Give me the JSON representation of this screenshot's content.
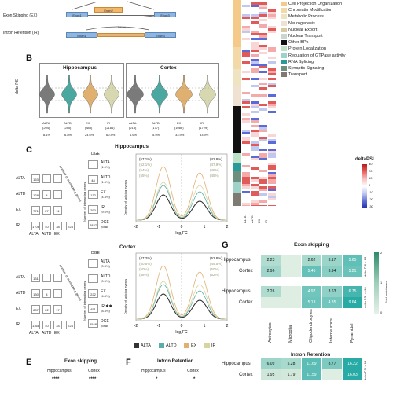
{
  "panel_a": {
    "exon_skipping_label": "Exon Skipping (EX)",
    "intron_retention_label": "Intron Retention (IR)",
    "exon1": "Exon1",
    "exon2": "Exon2",
    "exon3": "Exon3",
    "intron": "Intron"
  },
  "panel_b": {
    "letter": "B",
    "ylabel": "delta PSI",
    "left_title": "Hippocampus",
    "right_title": "Cortex",
    "left_cats": [
      "ALTA",
      "ALTD",
      "EX",
      "IR"
    ],
    "left_counts": [
      "(294)",
      "(245)",
      "(888)",
      "(2181)"
    ],
    "left_pcts": [
      "8.1%",
      "6.8%",
      "24.6%",
      "60.4%"
    ],
    "right_cats": [
      "ALTA",
      "ALTD",
      "EX",
      "IR"
    ],
    "right_counts": [
      "(213)",
      "(177)",
      "(1086)",
      "(1729)"
    ],
    "right_pcts": [
      "6.6%",
      "5.5%",
      "33.9%",
      "53.9%"
    ],
    "colors": [
      "#7a7a7a",
      "#4aa8a0",
      "#e0b070",
      "#d8d8b0"
    ]
  },
  "panel_c": {
    "letter": "C",
    "hippocampus_title": "Hippocampus",
    "cortex_title": "Cortex",
    "matrix_rows": [
      "ALTA",
      "ALTD",
      "EX",
      "IR"
    ],
    "matrix_cols": [
      "ALTA",
      "ALTD",
      "EX"
    ],
    "matrix_axis_label": "Number of overlapping genes",
    "dge_label": "DGE",
    "dge_axis_label": "Number of interacting genes",
    "hip_matrix": [
      [
        "153",
        "",
        ""
      ],
      [
        "128",
        "4",
        ""
      ],
      [
        "771",
        "27",
        "11"
      ],
      [
        "1706",
        "40",
        "38",
        "224"
      ]
    ],
    "hip_dge": [
      {
        "name": "ALTA",
        "count": "",
        "pct": "(1.0%)"
      },
      {
        "name": "ALTD",
        "count": "48",
        "pct": "(1.6%)"
      },
      {
        "name": "EX",
        "count": "132",
        "pct": "(4.3%)"
      },
      {
        "name": "IR",
        "count": "290",
        "pct": "(9.6%)"
      },
      {
        "name": "DGE",
        "count": "4827",
        "pct": "(total)"
      }
    ],
    "cortex_matrix": [
      [
        "131",
        "",
        ""
      ],
      [
        "130",
        "4",
        ""
      ],
      [
        "837",
        "22",
        "17"
      ],
      [
        "1368",
        "40",
        "34",
        "224"
      ]
    ],
    "cortex_dge": [
      {
        "name": "ALTA",
        "count": "",
        "pct": "(0.3%)"
      },
      {
        "name": "ALTD",
        "count": "",
        "pct": "(0.5%)"
      },
      {
        "name": "EX",
        "count": "222",
        "pct": "(4.8%)"
      },
      {
        "name": "IR ✱✱",
        "count": "451",
        "pct": "(8.3%)"
      },
      {
        "name": "DGE",
        "count": "5548",
        "pct": "(total)"
      }
    ],
    "density_ylabel": "Density of splicing events",
    "density_xlabel": "log₂FC",
    "x_ticks": [
      "-2",
      "-1",
      "0",
      "1",
      "2"
    ],
    "hip_left_pcts": [
      "(57.1%)",
      "(52.1%)",
      "(54%)",
      "(55%)"
    ],
    "hip_right_pcts": [
      "(42.8%)",
      "(47.9%)",
      "(46%)",
      "(45%)"
    ],
    "cortex_left_pcts": [
      "(47.2%)",
      "(50.5%)",
      "(50%)",
      "(48%)"
    ],
    "cortex_right_pcts": [
      "(52.8%)",
      "(49.5%)",
      "(50%)",
      "(52%)"
    ],
    "legend": [
      {
        "name": "ALTA",
        "color": "#333333"
      },
      {
        "name": "ALTD",
        "color": "#5aaeaa"
      },
      {
        "name": "EX",
        "color": "#e0b070"
      },
      {
        "name": "IR",
        "color": "#d8d4a0"
      }
    ]
  },
  "heatmap_legend": {
    "categories": [
      {
        "name": "Cell Projection Organization",
        "color": "#f5c98a"
      },
      {
        "name": "Chromatin Modification",
        "color": "#f3d9a8"
      },
      {
        "name": "Metabolic Process",
        "color": "#efe3c2"
      },
      {
        "name": "Neurogenesis",
        "color": "#f0e2d2"
      },
      {
        "name": "Nuclear Export",
        "color": "#d9c9a3"
      },
      {
        "name": "Nuclear Transport",
        "color": "#c8d8d0"
      },
      {
        "name": "Other BPs",
        "color": "#111111"
      },
      {
        "name": "Protein Localization",
        "color": "#bde3c7"
      },
      {
        "name": "Regulation of GTPase activity",
        "color": "#9fd2c8"
      },
      {
        "name": "RNA Splicing",
        "color": "#2a9a98"
      },
      {
        "name": "Synaptic Signaling",
        "color": "#6e8f7d"
      },
      {
        "name": "Transport",
        "color": "#7f7a72"
      }
    ],
    "colorbar_title": "deltaPSI",
    "colorbar_ticks": [
      "30",
      "20",
      "10",
      "0",
      "-10",
      "-20",
      "-30"
    ],
    "column_labels": [
      "ALTA",
      "ALTD",
      "EX",
      "IR"
    ]
  },
  "panel_e": {
    "letter": "E",
    "title": "Exon skipping",
    "cols": [
      "Hippocampus",
      "Cortex"
    ],
    "stars": [
      "****",
      "****"
    ]
  },
  "panel_f": {
    "letter": "F",
    "title": "Intron Retention",
    "cols": [
      "Hippocampus",
      "Cortex"
    ],
    "stars": [
      "*",
      "*"
    ]
  },
  "panel_g": {
    "letter": "G",
    "exon_title": "Exon skipping",
    "intron_title": "Intron Retention",
    "columns": [
      "Astrocytes",
      "Microglia",
      "Oligodendrocytes",
      "Interneurons",
      "Pyramidal"
    ],
    "exon_block1_label": "delta PSI > 10",
    "exon_block2_label": "delta PSI < -10",
    "intron_block_label": "delta PSI > 10",
    "exon_block1": [
      {
        "row": "Hippocampus",
        "values": [
          "2.23",
          "",
          "2.62",
          "3.17",
          "5.65"
        ]
      },
      {
        "row": "Cortex",
        "values": [
          "2.96",
          "",
          "5.46",
          "3.94",
          "5.21"
        ]
      }
    ],
    "exon_block2": [
      {
        "row": "Hippocampus",
        "values": [
          "2.26",
          "",
          "4.97",
          "3.63",
          "6.75"
        ]
      },
      {
        "row": "Cortex",
        "values": [
          "",
          "",
          "5.13",
          "4.85",
          "9.64"
        ]
      }
    ],
    "intron_block": [
      {
        "row": "Hippocampus",
        "values": [
          "6.09",
          "5.28",
          "11.69",
          "8.77",
          "16.22"
        ]
      },
      {
        "row": "Cortex",
        "values": [
          "1.95",
          "1.79",
          "11.59",
          "",
          "16.03"
        ]
      }
    ],
    "fold_label": "Fold enrichment",
    "scale_ticks": [
      "2",
      "1",
      "0"
    ]
  }
}
